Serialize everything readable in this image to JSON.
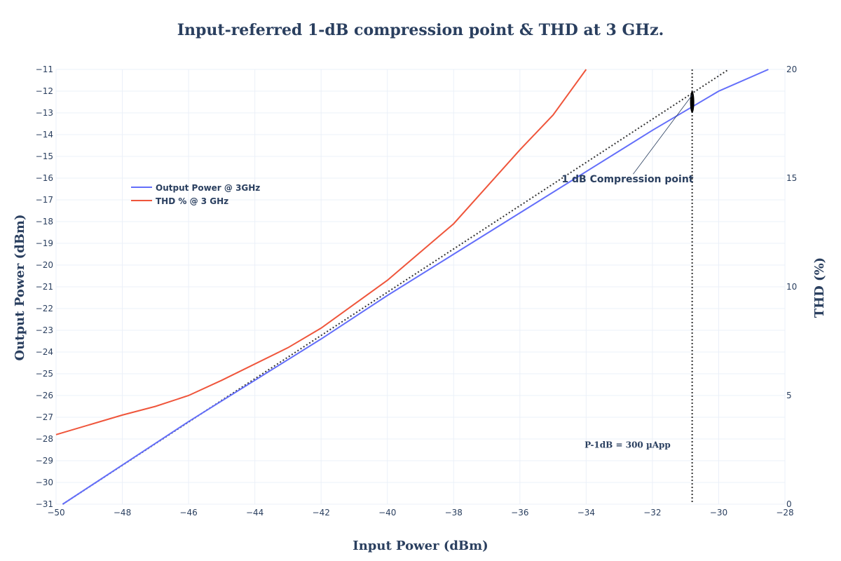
{
  "chart_data": {
    "type": "line",
    "title": "Input-referred 1-dB compression point & THD at 3 GHz.",
    "xlabel": "Input Power (dBm)",
    "ylabel": "Output Power (dBm)",
    "y2label": "THD (%)",
    "xlim": [
      -50,
      -28
    ],
    "ylim": [
      -31,
      -11
    ],
    "y2lim": [
      0,
      20
    ],
    "x_ticks": [
      "−50",
      "−48",
      "−46",
      "−44",
      "−42",
      "−40",
      "−38",
      "−36",
      "−34",
      "−32",
      "−30",
      "−28"
    ],
    "x_tick_values": [
      -50,
      -48,
      -46,
      -44,
      -42,
      -40,
      -38,
      -36,
      -34,
      -32,
      -30,
      -28
    ],
    "y_ticks": [
      "−11",
      "−12",
      "−13",
      "−14",
      "−15",
      "−16",
      "−17",
      "−18",
      "−19",
      "−20",
      "−21",
      "−22",
      "−23",
      "−24",
      "−25",
      "−26",
      "−27",
      "−28",
      "−29",
      "−30",
      "−31"
    ],
    "y_tick_values": [
      -11,
      -12,
      -13,
      -14,
      -15,
      -16,
      -17,
      -18,
      -19,
      -20,
      -21,
      -22,
      -23,
      -24,
      -25,
      -26,
      -27,
      -28,
      -29,
      -30,
      -31
    ],
    "y2_ticks": [
      "0",
      "5",
      "10",
      "15",
      "20"
    ],
    "y2_tick_values": [
      0,
      5,
      10,
      15,
      20
    ],
    "legend_position": "top-left",
    "grid": true,
    "series": [
      {
        "name": "Output Power @ 3GHz",
        "axis": "y",
        "color": "#636efa",
        "x": [
          -49.8,
          -48,
          -46,
          -44,
          -42,
          -40,
          -38,
          -36,
          -34,
          -32,
          -30,
          -28.5
        ],
        "y": [
          -31,
          -29.2,
          -27.2,
          -25.3,
          -23.4,
          -21.4,
          -19.5,
          -17.6,
          -15.7,
          -13.8,
          -12.0,
          -11.0
        ]
      },
      {
        "name": "THD % @ 3 GHz",
        "axis": "y2",
        "color": "#ef553b",
        "x": [
          -50,
          -48,
          -47,
          -46,
          -45,
          -43,
          -42,
          -40,
          -38,
          -36,
          -35,
          -34
        ],
        "y": [
          3.2,
          4.1,
          4.5,
          5.0,
          5.7,
          7.2,
          8.1,
          10.3,
          12.9,
          16.3,
          17.9,
          20.0
        ]
      }
    ],
    "reference_line": {
      "style": "dotted",
      "color": "#333333",
      "x": [
        -49.8,
        -29.7
      ],
      "y": [
        -31,
        -11
      ]
    },
    "vertical_line": {
      "x": -30.8,
      "style": "dotted",
      "color": "#333333"
    },
    "compression_marker": {
      "x": -30.8,
      "y_top": -12.0,
      "y_bottom": -13.0,
      "color": "#000000"
    },
    "annotations": {
      "compression_label": "1 dB Compression point",
      "compression_label_anchor": {
        "x": -32.75,
        "y": -16.2
      },
      "p1db_label": "P-1dB = 300 µApp",
      "p1db_label_anchor": {
        "x": -32.75,
        "y": -28.4
      }
    }
  },
  "colors": {
    "text": "#2a3f5f",
    "grid": "#ebf0f8"
  }
}
